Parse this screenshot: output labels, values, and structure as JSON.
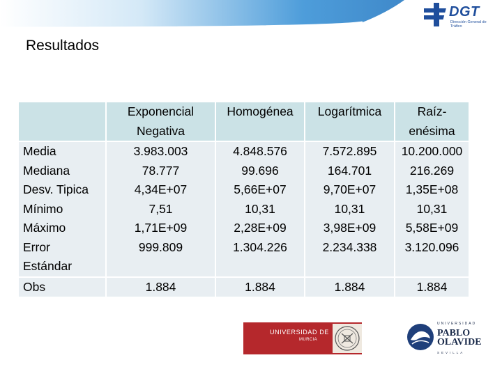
{
  "header": {
    "logo_text": "DGT",
    "logo_subtext": "Dirección General de Tráfico",
    "brand_color": "#1f4e9c",
    "band_color": "#3a92d6"
  },
  "page": {
    "title": "Resultados"
  },
  "table": {
    "columns": [
      {
        "line1": "Exponencial",
        "line2": "Negativa"
      },
      {
        "line1": "Homogénea",
        "line2": ""
      },
      {
        "line1": "Logarítmica",
        "line2": ""
      },
      {
        "line1": "Raíz-",
        "line2": "enésima"
      }
    ],
    "stat_labels": [
      "Media",
      "Mediana",
      "Desv. Tipica",
      "Mínimo",
      "Máximo",
      "Error",
      "Estándar"
    ],
    "values": [
      [
        "3.983.003",
        "78.777",
        "4,34E+07",
        "7,51",
        "1,71E+09",
        "999.809"
      ],
      [
        "4.848.576",
        "99.696",
        "5,66E+07",
        "10,31",
        "2,28E+09",
        "1.304.226"
      ],
      [
        "7.572.895",
        "164.701",
        "9,70E+07",
        "10,31",
        "3,98E+09",
        "2.234.338"
      ],
      [
        "10.200.000",
        "216.269",
        "1,35E+08",
        "10,31",
        "5,58E+09",
        "3.120.096"
      ]
    ],
    "obs_label": "Obs",
    "obs_values": [
      "1.884",
      "1.884",
      "1.884",
      "1.884"
    ],
    "header_fill": "#cbe2e6",
    "body_fill": "#e8eef2"
  },
  "footer": {
    "murcia_line1": "UNIVERSIDAD DE",
    "murcia_line2": "MURCIA",
    "murcia_color": "#b5282c",
    "olavide_top": "UNIVERSIDAD",
    "olavide_line1": "PABLO",
    "olavide_line2": "OLAVIDE",
    "olavide_bottom": "SEVILLA"
  }
}
